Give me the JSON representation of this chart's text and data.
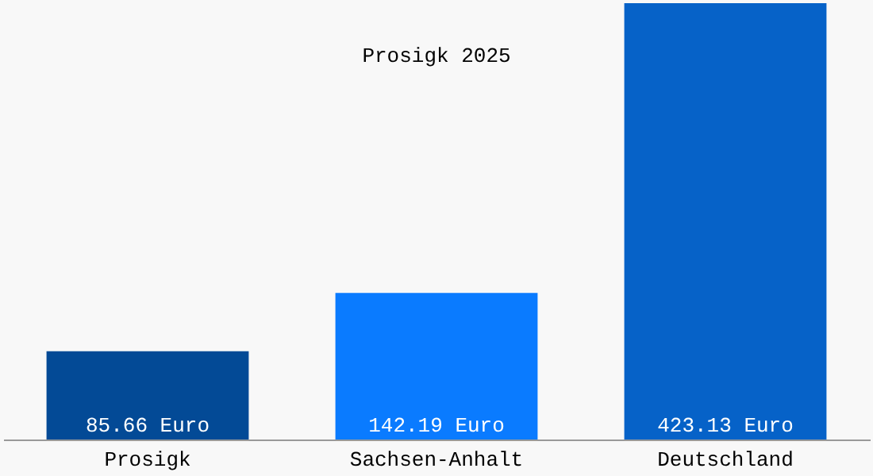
{
  "chart_data": {
    "type": "bar",
    "title": "Prosigk 2025",
    "categories": [
      "Prosigk",
      "Sachsen-Anhalt",
      "Deutschland"
    ],
    "values": [
      85.66,
      142.19,
      423.13
    ],
    "colors": [
      "#034a96",
      "#0a7bff",
      "#0662c8"
    ],
    "value_labels": [
      "85.66 Euro",
      "142.19 Euro",
      "423.13 Euro"
    ],
    "grid": false,
    "legend": false
  }
}
